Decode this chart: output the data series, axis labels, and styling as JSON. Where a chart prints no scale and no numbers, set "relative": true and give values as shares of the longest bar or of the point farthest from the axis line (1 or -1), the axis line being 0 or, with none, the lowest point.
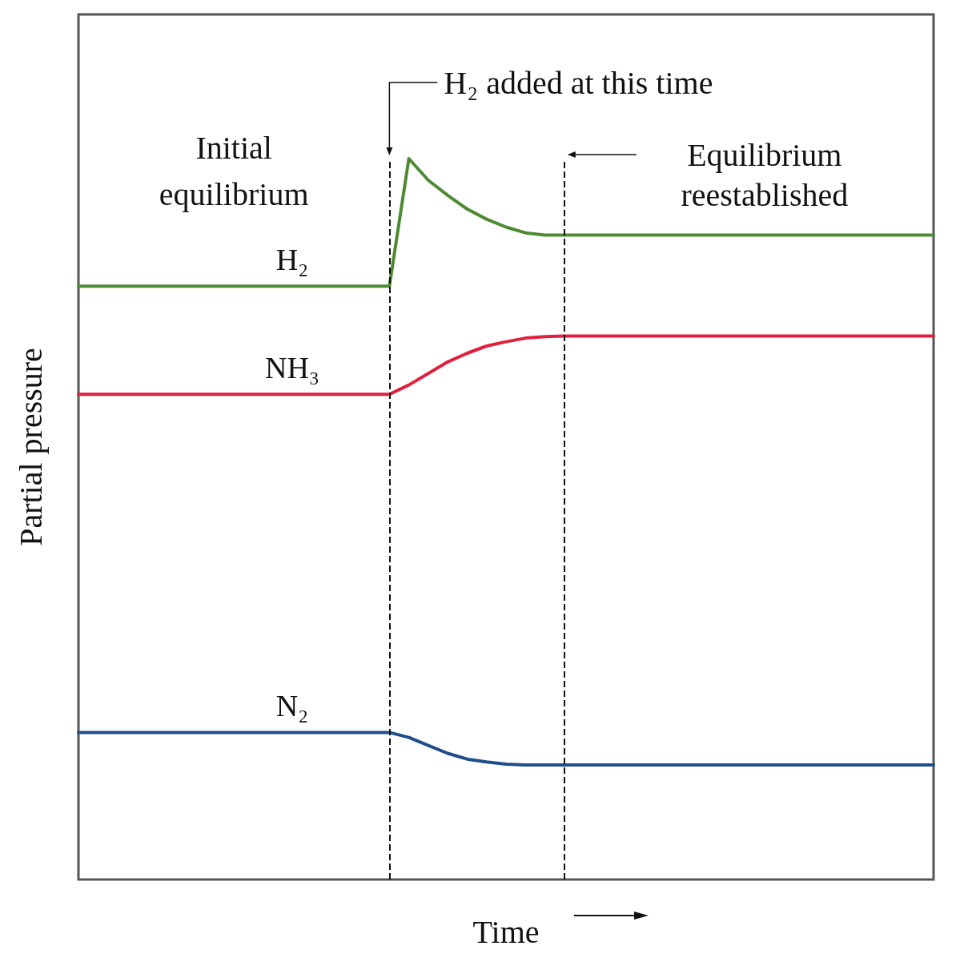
{
  "chart_data": {
    "type": "line",
    "relative": true,
    "xlabel": "Time",
    "ylabel": "Partial pressure",
    "legend": false,
    "grid": false,
    "marker": "none",
    "line_style": "solid",
    "categories": [
      null,
      null,
      null,
      null,
      null,
      null,
      null,
      null,
      null,
      null,
      null,
      null,
      null,
      null,
      null,
      null,
      null,
      null,
      null,
      null,
      null,
      null,
      null,
      null,
      null,
      null,
      null,
      null,
      null,
      null,
      null,
      null,
      null,
      null,
      null,
      null,
      null,
      null,
      null,
      null,
      null,
      null,
      null,
      null,
      null
    ],
    "series": [
      {
        "name": "H₂",
        "color": "#4e8a33",
        "values": [
          0.823,
          0.823,
          0.823,
          0.823,
          0.823,
          0.823,
          0.823,
          0.823,
          0.823,
          0.823,
          0.823,
          0.823,
          0.823,
          0.823,
          0.823,
          0.823,
          0.823,
          1.0,
          0.97,
          0.949,
          0.93,
          0.916,
          0.905,
          0.897,
          0.894,
          0.894,
          0.894,
          0.894,
          0.894,
          0.894,
          0.894,
          0.894,
          0.894,
          0.894,
          0.894,
          0.894,
          0.894,
          0.894,
          0.894,
          0.894,
          0.894,
          0.894,
          0.894,
          0.894,
          0.894
        ]
      },
      {
        "name": "NH₃",
        "color": "#e0203c",
        "values": [
          0.673,
          0.673,
          0.673,
          0.673,
          0.673,
          0.673,
          0.673,
          0.673,
          0.673,
          0.673,
          0.673,
          0.673,
          0.673,
          0.673,
          0.673,
          0.673,
          0.673,
          0.686,
          0.702,
          0.718,
          0.73,
          0.74,
          0.746,
          0.751,
          0.753,
          0.754,
          0.754,
          0.754,
          0.754,
          0.754,
          0.754,
          0.754,
          0.754,
          0.754,
          0.754,
          0.754,
          0.754,
          0.754,
          0.754,
          0.754,
          0.754,
          0.754,
          0.754,
          0.754,
          0.754
        ]
      },
      {
        "name": "N₂",
        "color": "#1f4e8c",
        "values": [
          0.204,
          0.204,
          0.204,
          0.204,
          0.204,
          0.204,
          0.204,
          0.204,
          0.204,
          0.204,
          0.204,
          0.204,
          0.204,
          0.204,
          0.204,
          0.204,
          0.204,
          0.197,
          0.186,
          0.175,
          0.167,
          0.163,
          0.16,
          0.159,
          0.159,
          0.159,
          0.159,
          0.159,
          0.159,
          0.159,
          0.159,
          0.159,
          0.159,
          0.159,
          0.159,
          0.159,
          0.159,
          0.159,
          0.159,
          0.159,
          0.159,
          0.159,
          0.159,
          0.159,
          0.159
        ]
      }
    ],
    "annotations": [
      "H₂ added at this time",
      "Equilibrium\nreestablished",
      "Initial\nequilibrium"
    ]
  }
}
